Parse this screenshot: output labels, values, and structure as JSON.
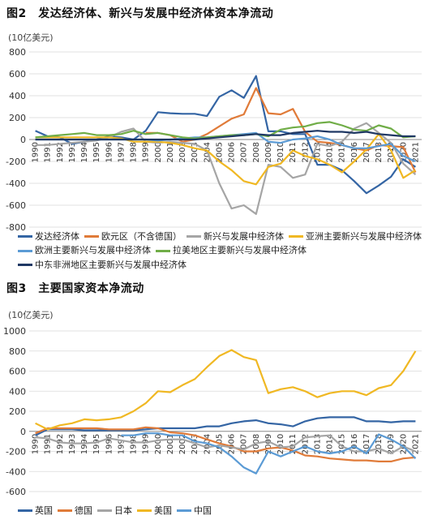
{
  "chart_data": [
    {
      "type": "line",
      "title": "图2　发达经济体、新兴与发展中经济体资本净流动",
      "unit": "(10亿美元)",
      "ylim": [
        -800,
        800
      ],
      "yticks": [
        "800",
        "600",
        "400",
        "200",
        "0",
        "-200",
        "-400",
        "-600",
        "-800"
      ],
      "yticks_values": [
        800,
        600,
        400,
        200,
        0,
        -200,
        -400,
        -600,
        -800
      ],
      "grid": true,
      "legend_position": "bottom",
      "categories": [
        "1990",
        "1991",
        "1992",
        "1993",
        "1994",
        "1995",
        "1996",
        "1997",
        "1998",
        "1999",
        "2000",
        "2001",
        "2002",
        "2003",
        "2004",
        "2005",
        "2006",
        "2007",
        "2008",
        "2009",
        "2010",
        "2011",
        "2012",
        "2013",
        "2014",
        "2015",
        "2016",
        "2017",
        "2018",
        "2019",
        "2020",
        "2021"
      ],
      "series": [
        {
          "name": "发达经济体",
          "color": "#3465a4",
          "values": [
            80,
            30,
            20,
            -40,
            -20,
            0,
            30,
            20,
            0,
            80,
            250,
            240,
            235,
            235,
            215,
            390,
            450,
            380,
            580,
            75,
            75,
            50,
            50,
            -230,
            -230,
            -280,
            -380,
            -490,
            -420,
            -340,
            -180,
            -250
          ]
        },
        {
          "name": "欧元区（不含德国）",
          "color": "#e07b39",
          "values": [
            null,
            null,
            null,
            null,
            null,
            null,
            null,
            null,
            null,
            60,
            60,
            40,
            -20,
            0,
            50,
            120,
            190,
            230,
            470,
            240,
            230,
            280,
            70,
            -20,
            -30,
            -50,
            -80,
            -100,
            -50,
            -60,
            -70,
            -300
          ]
        },
        {
          "name": "新兴与发展中经济体",
          "color": "#a5a5a5",
          "values": [
            -50,
            -50,
            -40,
            -30,
            -20,
            -10,
            20,
            70,
            100,
            -20,
            -30,
            -20,
            -30,
            -40,
            -100,
            -400,
            -630,
            -600,
            -680,
            -230,
            -250,
            -350,
            -320,
            -40,
            -60,
            -20,
            100,
            150,
            60,
            -30,
            -220,
            -320
          ]
        },
        {
          "name": "亚洲主要新兴与发展中经济体",
          "color": "#f0b823",
          "values": [
            20,
            20,
            20,
            20,
            20,
            20,
            20,
            10,
            -20,
            -20,
            -20,
            -30,
            -50,
            -80,
            -100,
            -200,
            -280,
            -380,
            -410,
            -250,
            -220,
            -100,
            -150,
            -180,
            -230,
            -300,
            -200,
            -90,
            50,
            -100,
            -350,
            -280
          ]
        },
        {
          "name": "欧洲主要新兴与发展中经济体",
          "color": "#5b9bd5",
          "values": [
            0,
            0,
            0,
            0,
            0,
            0,
            0,
            0,
            0,
            0,
            -10,
            0,
            10,
            20,
            20,
            30,
            40,
            50,
            60,
            -20,
            -30,
            0,
            10,
            30,
            0,
            -50,
            -80,
            -80,
            -60,
            -40,
            -150,
            -200
          ]
        },
        {
          "name": "拉美地区主要新兴与发展中经济体",
          "color": "#70ad47",
          "values": [
            20,
            30,
            40,
            50,
            60,
            40,
            40,
            50,
            80,
            50,
            60,
            40,
            20,
            10,
            20,
            30,
            40,
            40,
            50,
            30,
            90,
            110,
            120,
            150,
            160,
            130,
            90,
            80,
            130,
            100,
            20,
            30
          ]
        },
        {
          "name": "中东非洲地区主要新兴与发展中经济体",
          "color": "#1f3864",
          "values": [
            0,
            0,
            0,
            0,
            0,
            0,
            0,
            0,
            0,
            0,
            0,
            0,
            0,
            0,
            10,
            20,
            30,
            40,
            50,
            40,
            40,
            60,
            70,
            80,
            70,
            70,
            60,
            70,
            50,
            40,
            30,
            30
          ]
        }
      ]
    },
    {
      "type": "line",
      "title": "图3　主要国家资本净流动",
      "unit": "(10亿美元)",
      "ylim": [
        -600,
        1000
      ],
      "yticks": [
        "1000",
        "800",
        "600",
        "400",
        "200",
        "0",
        "-200",
        "-400",
        "-600"
      ],
      "yticks_values": [
        1000,
        800,
        600,
        400,
        200,
        0,
        -200,
        -400,
        -600
      ],
      "grid": true,
      "legend_position": "bottom",
      "categories": [
        "1990",
        "1991",
        "1992",
        "1993",
        "1994",
        "1995",
        "1996",
        "1997",
        "1998",
        "1999",
        "2000",
        "2001",
        "2002",
        "2003",
        "2004",
        "2005",
        "2006",
        "2007",
        "2008",
        "2009",
        "2010",
        "2011",
        "2012",
        "2013",
        "2014",
        "2015",
        "2016",
        "2017",
        "2018",
        "2019",
        "2020",
        "2021"
      ],
      "series": [
        {
          "name": "英国",
          "color": "#3465a4",
          "values": [
            -40,
            20,
            20,
            20,
            10,
            10,
            10,
            10,
            10,
            20,
            30,
            30,
            30,
            30,
            50,
            50,
            80,
            100,
            110,
            80,
            70,
            50,
            100,
            130,
            140,
            140,
            140,
            100,
            100,
            90,
            100,
            100
          ]
        },
        {
          "name": "德国",
          "color": "#e07b39",
          "values": [
            -20,
            30,
            30,
            30,
            30,
            30,
            20,
            20,
            20,
            40,
            30,
            -10,
            -20,
            -40,
            -80,
            -120,
            -150,
            -200,
            -200,
            -170,
            -160,
            -190,
            -240,
            -250,
            -270,
            -280,
            -290,
            -290,
            -300,
            -300,
            -270,
            -260
          ]
        },
        {
          "name": "日本",
          "color": "#a5a5a5",
          "values": [
            -60,
            -70,
            -110,
            -120,
            -120,
            -110,
            -70,
            -90,
            -110,
            -110,
            -90,
            -80,
            -80,
            -120,
            -160,
            -140,
            -160,
            -180,
            -120,
            -100,
            -160,
            -150,
            -60,
            -50,
            -40,
            -150,
            -200,
            -200,
            -170,
            -220,
            -150,
            -200
          ]
        },
        {
          "name": "美国",
          "color": "#f0b823",
          "values": [
            80,
            20,
            60,
            80,
            120,
            110,
            120,
            140,
            200,
            280,
            400,
            390,
            460,
            520,
            640,
            750,
            810,
            740,
            710,
            380,
            420,
            440,
            400,
            340,
            380,
            400,
            400,
            360,
            430,
            460,
            600,
            800
          ]
        },
        {
          "name": "中国",
          "color": "#5b9bd5",
          "values": [
            null,
            null,
            null,
            null,
            null,
            null,
            null,
            -40,
            -40,
            -20,
            -20,
            -40,
            -40,
            -100,
            -120,
            -160,
            -250,
            -360,
            -420,
            -200,
            -250,
            -200,
            -150,
            -200,
            -220,
            -200,
            -150,
            -220,
            -30,
            -80,
            -150,
            -270
          ]
        }
      ]
    }
  ]
}
